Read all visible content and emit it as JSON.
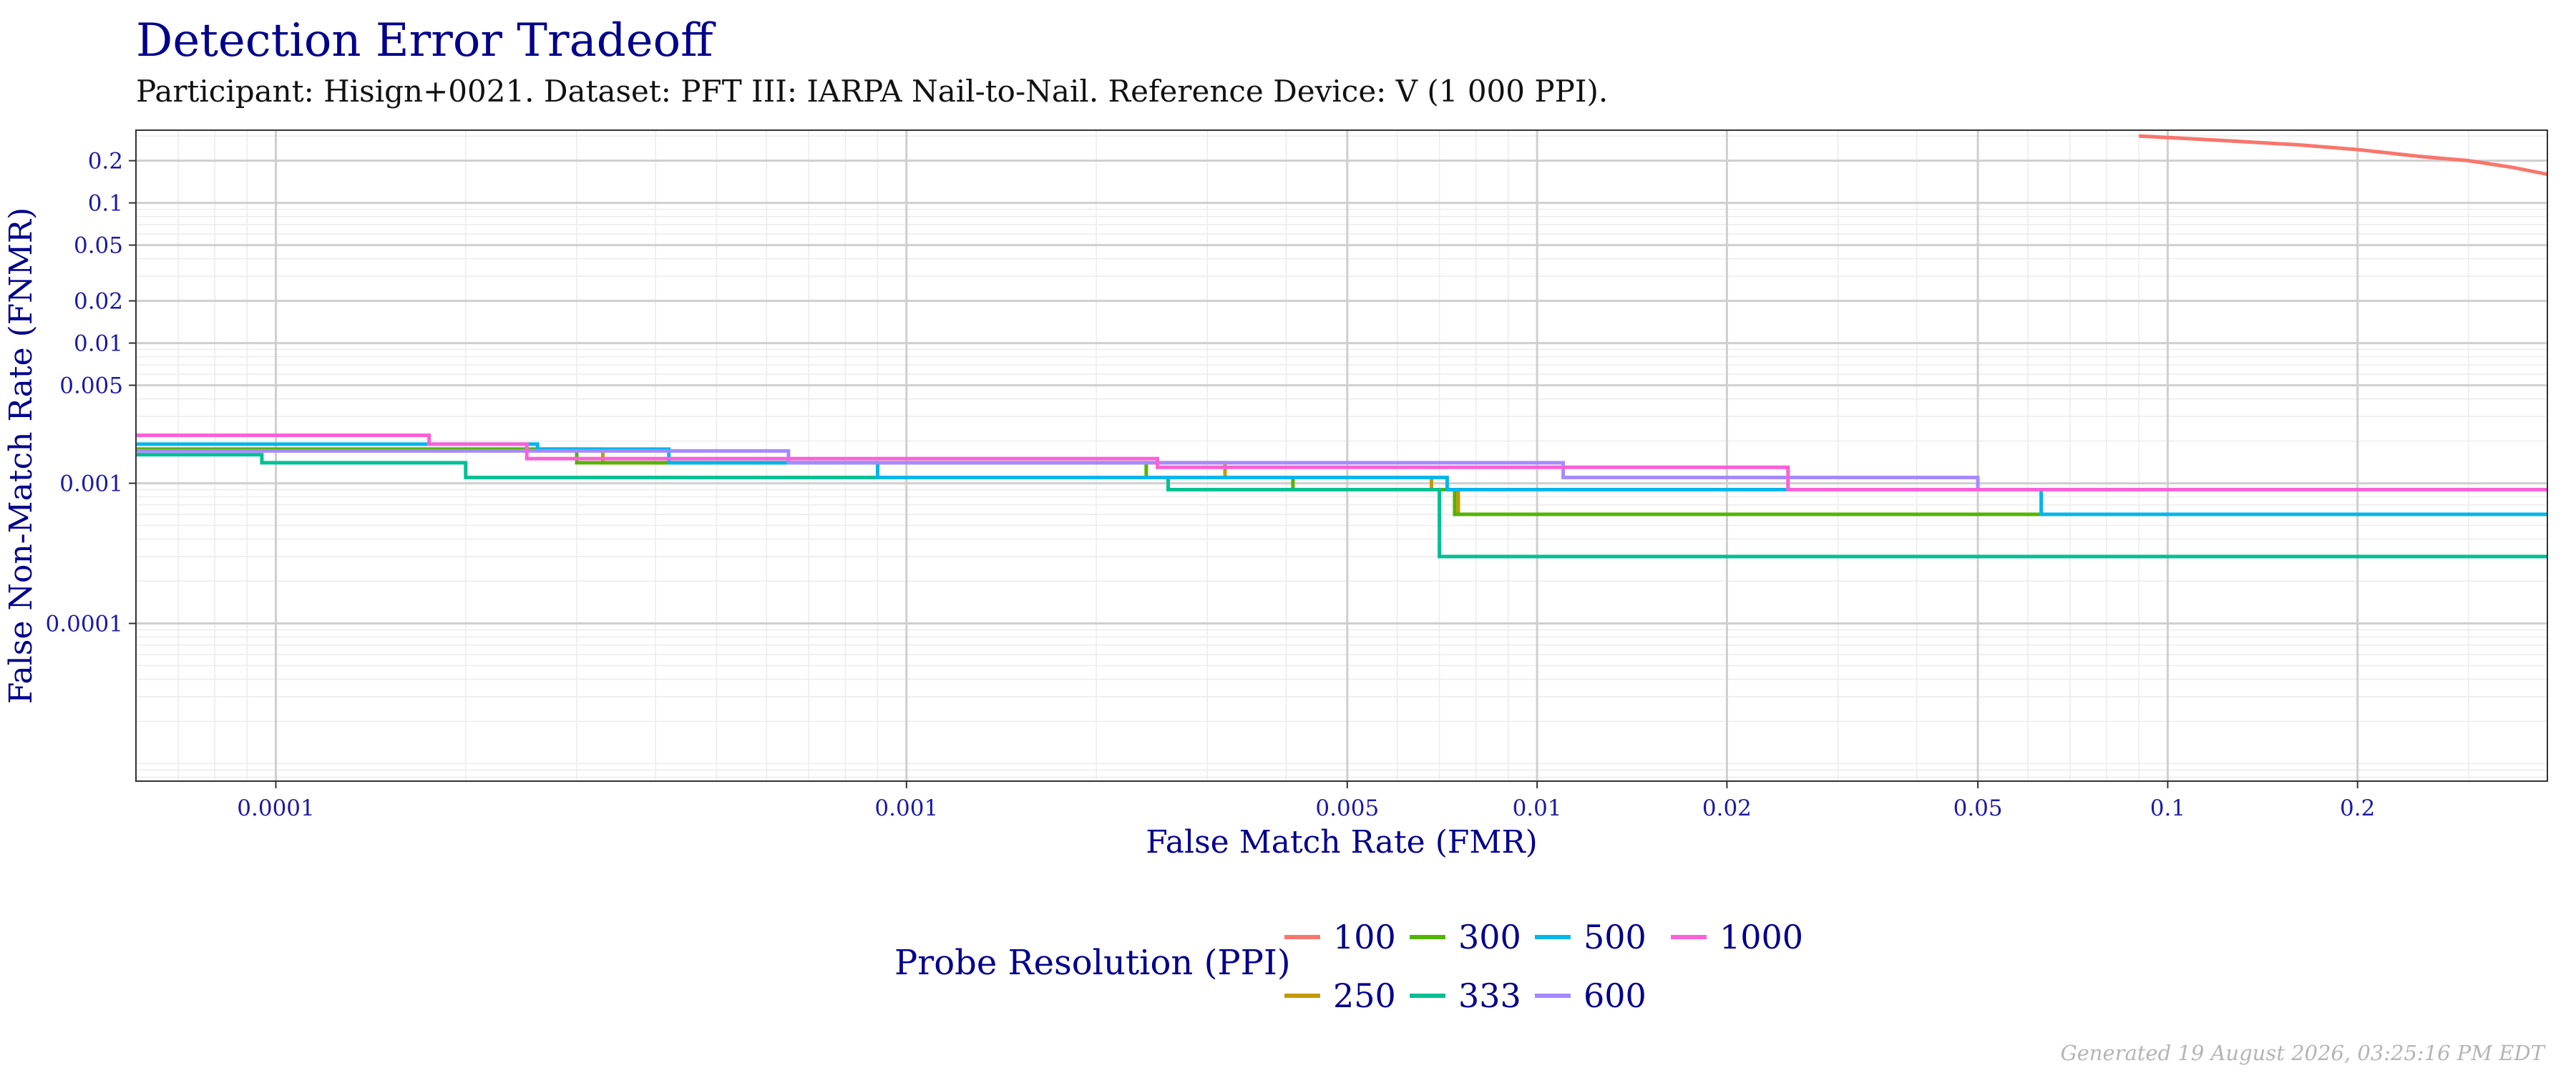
{
  "title": "Detection Error Tradeoff",
  "subtitle": "Participant: Hisign+0021. Dataset: PFT III: IARPA Nail-to-Nail. Reference Device: V (1 000 PPI).",
  "footer": "Generated 19 August 2026, 03:25:16 PM EDT",
  "chart_data": {
    "type": "line",
    "step": true,
    "xscale": "log",
    "yscale": "log",
    "xlabel": "False Match Rate (FMR)",
    "ylabel": "False Non-Match Rate (FNMR)",
    "xlim": [
      6e-05,
      0.4
    ],
    "ylim": [
      7.5e-06,
      0.33
    ],
    "x_ticks": [
      0.0001,
      0.001,
      0.005,
      0.01,
      0.02,
      0.05,
      0.1,
      0.2
    ],
    "x_tick_labels": [
      "0.0001",
      "0.001",
      "0.005",
      "0.01",
      "0.02",
      "0.05",
      "0.1",
      "0.2"
    ],
    "y_ticks": [
      0.2,
      0.1,
      0.05,
      0.02,
      0.01,
      0.005,
      0.001,
      0.0001
    ],
    "y_tick_labels": [
      "0.2",
      "0.1",
      "0.05",
      "0.02",
      "0.01",
      "0.005",
      "0.001",
      "0.0001"
    ],
    "grid": true,
    "legend": {
      "title": "Probe Resolution (PPI)",
      "position": "bottom"
    },
    "series": [
      {
        "name": "100",
        "color": "#F8766D",
        "x": [
          0.09,
          0.12,
          0.16,
          0.2,
          0.25,
          0.3,
          0.35,
          0.4
        ],
        "y": [
          0.3,
          0.28,
          0.26,
          0.24,
          0.215,
          0.2,
          0.18,
          0.16
        ]
      },
      {
        "name": "250",
        "color": "#C49A00",
        "x": [
          6e-05,
          0.00016,
          0.00033,
          0.0022,
          0.0032,
          0.0068,
          0.0075,
          0.4
        ],
        "y": [
          0.00175,
          0.00175,
          0.0014,
          0.0014,
          0.0011,
          0.0009,
          0.0006,
          0.0006
        ]
      },
      {
        "name": "300",
        "color": "#53B400",
        "x": [
          6e-05,
          0.0003,
          0.0024,
          0.0041,
          0.0074,
          0.4
        ],
        "y": [
          0.00175,
          0.0014,
          0.0011,
          0.0009,
          0.0006,
          0.0006
        ]
      },
      {
        "name": "333",
        "color": "#00C094",
        "x": [
          6e-05,
          9.5e-05,
          0.0002,
          0.0026,
          0.007,
          0.4
        ],
        "y": [
          0.0016,
          0.0014,
          0.0011,
          0.0009,
          0.0003,
          0.0003
        ]
      },
      {
        "name": "500",
        "color": "#00B6EB",
        "x": [
          6e-05,
          0.00026,
          0.00042,
          0.0009,
          0.0072,
          0.063,
          0.4
        ],
        "y": [
          0.0019,
          0.00175,
          0.0014,
          0.0011,
          0.0009,
          0.0006,
          0.0006
        ]
      },
      {
        "name": "600",
        "color": "#A58AFF",
        "x": [
          6e-05,
          0.00065,
          0.011,
          0.05,
          0.4
        ],
        "y": [
          0.0017,
          0.0014,
          0.0011,
          0.0009,
          0.0009
        ]
      },
      {
        "name": "1000",
        "color": "#FB61D7",
        "x": [
          6e-05,
          0.000175,
          0.00025,
          0.0025,
          0.025,
          0.4
        ],
        "y": [
          0.0022,
          0.0019,
          0.0015,
          0.0013,
          0.0009,
          0.0009
        ]
      }
    ]
  }
}
